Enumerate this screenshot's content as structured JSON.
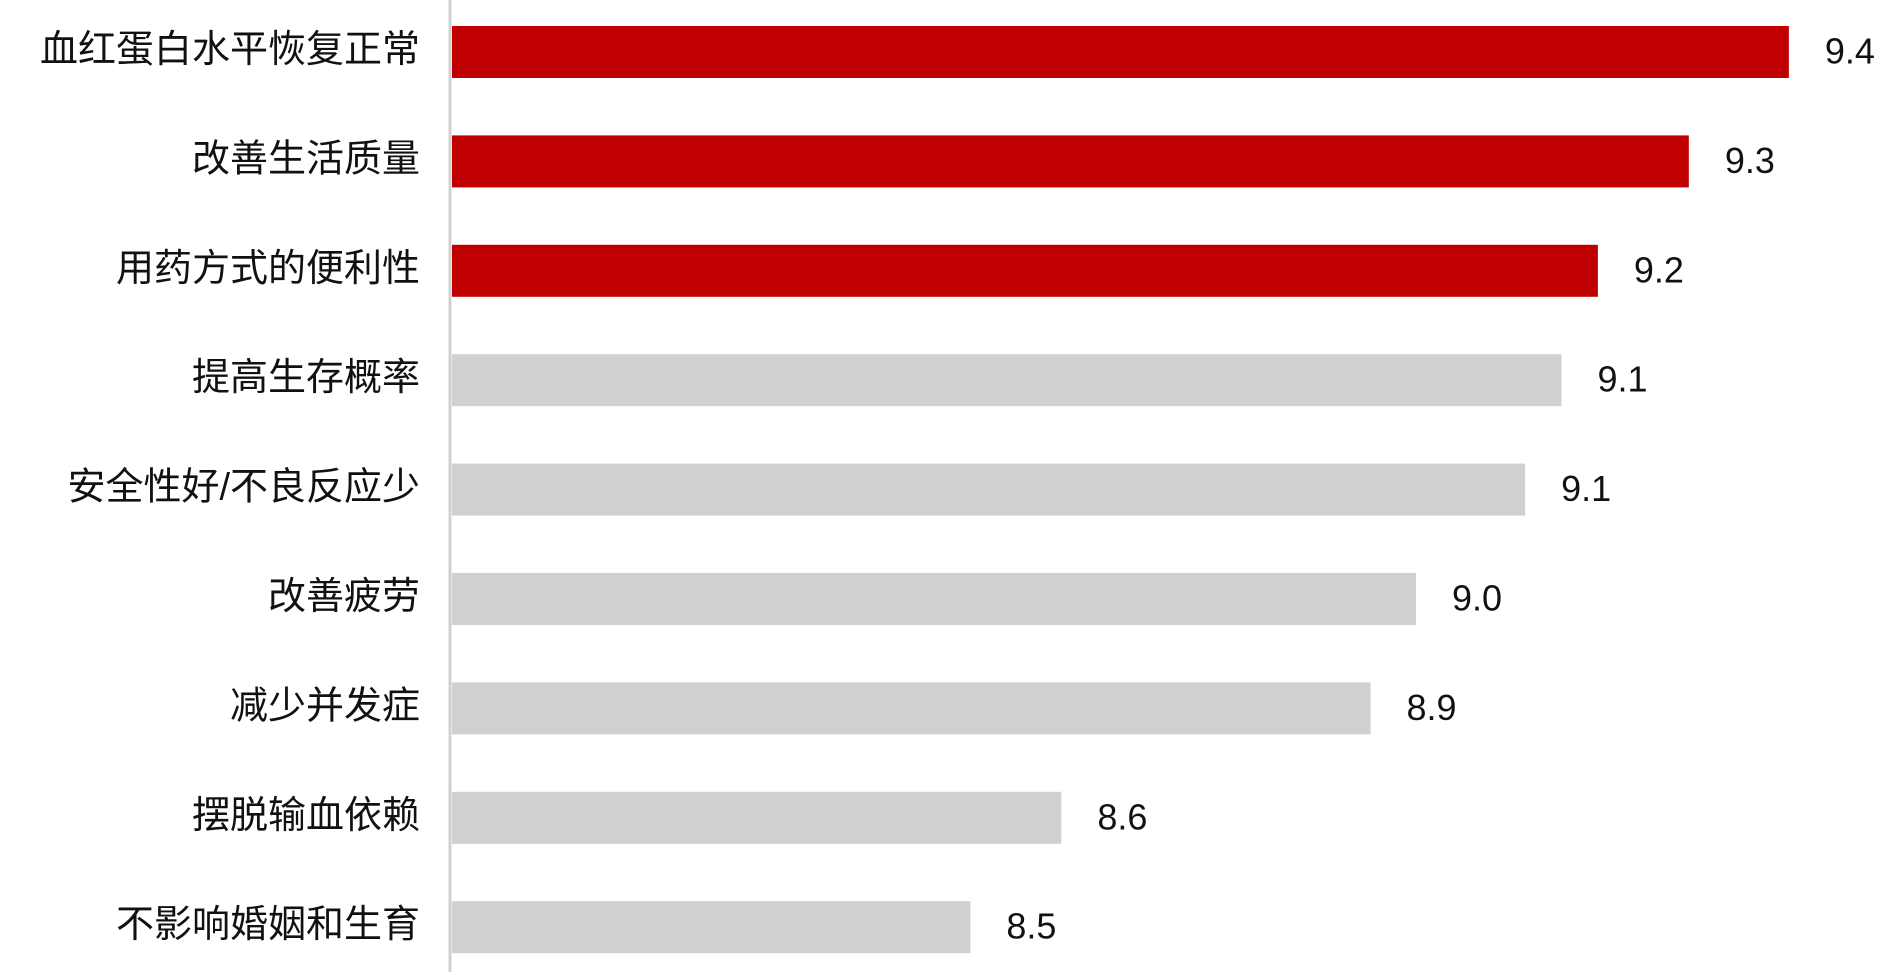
{
  "chart_data": {
    "type": "bar",
    "orientation": "horizontal",
    "categories": [
      "血红蛋白水平恢复正常",
      "改善生活质量",
      "用药方式的便利性",
      "提高生存概率",
      "安全性好/不良反应少",
      "改善疲劳",
      "减少并发症",
      "摆脱输血依赖",
      "不影响婚姻和生育"
    ],
    "values": [
      9.4,
      9.29,
      9.19,
      9.15,
      9.11,
      8.99,
      8.94,
      8.6,
      8.5
    ],
    "value_labels": [
      "9.4",
      "9.3",
      "9.2",
      "9.1",
      "9.1",
      "9.0",
      "8.9",
      "8.6",
      "8.5"
    ],
    "colors": [
      "#c00000",
      "#c00000",
      "#c00000",
      "#d0d0d0",
      "#d0d0d0",
      "#d0d0d0",
      "#d0d0d0",
      "#d0d0d0",
      "#d0d0d0"
    ],
    "xlim": [
      7.93,
      9.52
    ]
  }
}
